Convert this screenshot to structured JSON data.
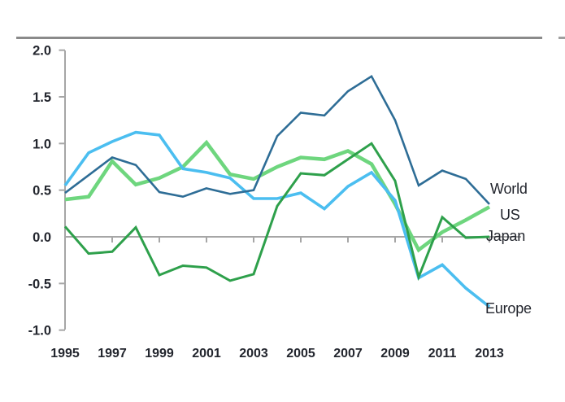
{
  "decor": {
    "top_rule_color": "#8A8A8A",
    "right_edge_dash_color": "#9F9F9F"
  },
  "axis": {
    "line_color": "#A6A6A6",
    "text_color": "#23262E"
  },
  "chart_data": {
    "type": "line",
    "x": [
      1995,
      1996,
      1997,
      1998,
      1999,
      2000,
      2001,
      2002,
      2003,
      2004,
      2005,
      2006,
      2007,
      2008,
      2009,
      2010,
      2011,
      2012,
      2013
    ],
    "x_tick_labels": [
      "1995",
      "1997",
      "1999",
      "2001",
      "2003",
      "2005",
      "2007",
      "2009",
      "2011",
      "2013"
    ],
    "y_ticks": [
      "2.0",
      "1.5",
      "1.0",
      "0.5",
      "0.0",
      "-0.5",
      "-1.0"
    ],
    "ylim": [
      -1.0,
      2.0
    ],
    "xlabel": "",
    "ylabel": "",
    "grid": "zero-baseline-only",
    "legend_position": "right-of-line-ends",
    "series": [
      {
        "name": "World",
        "color": "#2E6D96",
        "width": 2.6,
        "values": [
          0.47,
          0.66,
          0.85,
          0.77,
          0.48,
          0.43,
          0.52,
          0.46,
          0.5,
          1.08,
          1.33,
          1.3,
          1.56,
          1.72,
          1.25,
          0.55,
          0.71,
          0.62,
          0.35
        ]
      },
      {
        "name": "US",
        "color": "#6ED67E",
        "width": 4.5,
        "values": [
          0.4,
          0.43,
          0.81,
          0.56,
          0.63,
          0.75,
          1.01,
          0.67,
          0.62,
          0.75,
          0.85,
          0.83,
          0.92,
          0.78,
          0.35,
          -0.14,
          0.05,
          0.18,
          0.32
        ]
      },
      {
        "name": "Japan",
        "color": "#2EA04B",
        "width": 3.0,
        "values": [
          0.11,
          -0.18,
          -0.16,
          0.1,
          -0.41,
          -0.31,
          -0.33,
          -0.47,
          -0.4,
          0.33,
          0.68,
          0.66,
          0.83,
          1.0,
          0.6,
          -0.43,
          0.21,
          -0.01,
          0.0
        ]
      },
      {
        "name": "Europe",
        "color": "#4BBEF0",
        "width": 3.6,
        "values": [
          0.55,
          0.9,
          1.02,
          1.12,
          1.09,
          0.73,
          0.69,
          0.63,
          0.41,
          0.41,
          0.47,
          0.3,
          0.54,
          0.69,
          0.39,
          -0.44,
          -0.3,
          -0.55,
          -0.75
        ]
      }
    ]
  }
}
